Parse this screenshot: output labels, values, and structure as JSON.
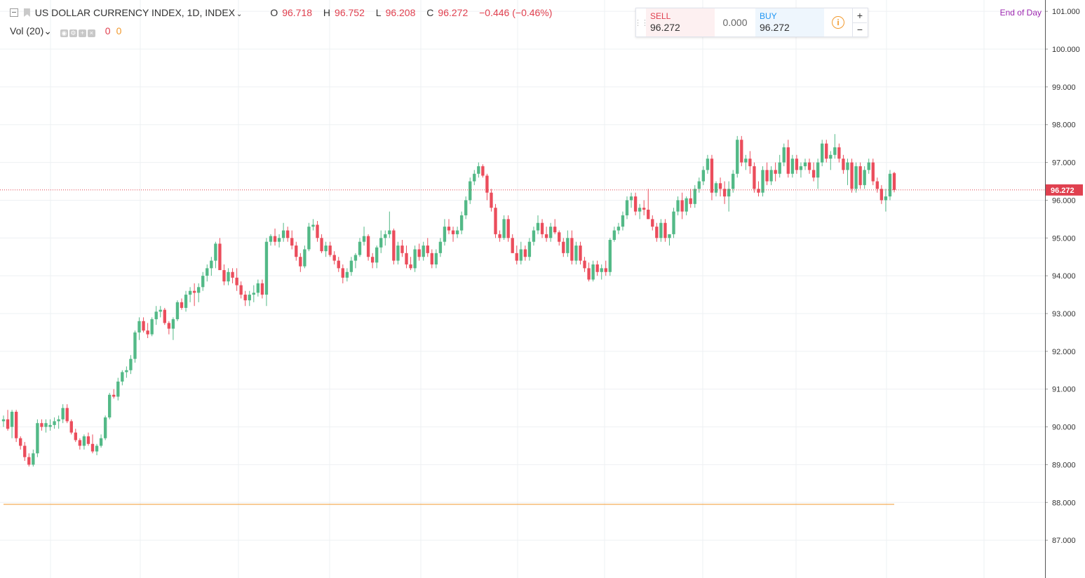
{
  "legend": {
    "symbol": "US DOLLAR CURRENCY INDEX, 1D, INDEX",
    "open_key": "O",
    "open": "96.718",
    "high_key": "H",
    "high": "96.752",
    "low_key": "L",
    "low": "96.208",
    "close_key": "C",
    "close": "96.272",
    "change": "−0.446 (−0.46%)"
  },
  "volume": {
    "label": "Vol (20)",
    "value1": "0",
    "value2": "0"
  },
  "trade": {
    "sell_label": "SELL",
    "sell_price": "96.272",
    "spread": "0.000",
    "buy_label": "BUY",
    "buy_price": "96.272",
    "info_glyph": "i",
    "zoom_in": "+",
    "zoom_out": "−"
  },
  "session_label": "End of Day",
  "price_tag": "96.272",
  "colors": {
    "up": "#53b987",
    "down": "#eb4d5c",
    "last_price_line": "#e0404f",
    "horizontal_line": "#f29a2e",
    "session_label": "#9c27b0"
  },
  "icons": [
    "collapse-icon",
    "flag-icon",
    "chevron-down-icon",
    "settings-icon",
    "add-icon",
    "close-icon",
    "info-icon",
    "drag-handle-icon"
  ],
  "chart_data": {
    "type": "candlestick",
    "y_axis": {
      "position": "right",
      "range": [
        86.0,
        101.3
      ],
      "ticks": [
        "101.000",
        "100.000",
        "99.000",
        "98.000",
        "97.000",
        "96.000",
        "95.000",
        "94.000",
        "93.000",
        "92.000",
        "91.000",
        "90.000",
        "89.000",
        "88.000",
        "87.000"
      ]
    },
    "grid": true,
    "last_price": 96.272,
    "horizontal_line": 87.95,
    "candles_ohlc": [
      [
        90.15,
        90.3,
        90.0,
        90.2
      ],
      [
        90.2,
        90.45,
        89.9,
        89.95
      ],
      [
        90.0,
        90.45,
        89.7,
        90.4
      ],
      [
        90.4,
        90.45,
        89.6,
        89.7
      ],
      [
        89.7,
        89.75,
        89.4,
        89.5
      ],
      [
        89.5,
        89.6,
        89.1,
        89.2
      ],
      [
        89.2,
        89.3,
        88.95,
        89.0
      ],
      [
        89.0,
        89.4,
        88.95,
        89.3
      ],
      [
        89.3,
        90.2,
        89.2,
        90.1
      ],
      [
        90.1,
        90.2,
        89.9,
        90.0
      ],
      [
        90.0,
        90.2,
        89.85,
        90.1
      ],
      [
        90.0,
        90.2,
        89.9,
        90.05
      ],
      [
        90.05,
        90.25,
        89.95,
        90.15
      ],
      [
        90.15,
        90.3,
        89.95,
        90.2
      ],
      [
        90.2,
        90.6,
        90.1,
        90.5
      ],
      [
        90.5,
        90.6,
        90.1,
        90.15
      ],
      [
        90.15,
        90.2,
        89.8,
        89.85
      ],
      [
        89.85,
        89.95,
        89.6,
        89.65
      ],
      [
        89.65,
        89.7,
        89.4,
        89.5
      ],
      [
        89.5,
        89.8,
        89.4,
        89.75
      ],
      [
        89.75,
        89.85,
        89.5,
        89.55
      ],
      [
        89.55,
        89.8,
        89.3,
        89.35
      ],
      [
        89.35,
        89.55,
        89.25,
        89.5
      ],
      [
        89.5,
        89.8,
        89.45,
        89.7
      ],
      [
        89.7,
        90.3,
        89.65,
        90.25
      ],
      [
        90.25,
        90.9,
        90.2,
        90.85
      ],
      [
        90.85,
        91.0,
        90.75,
        90.8
      ],
      [
        90.8,
        91.3,
        90.7,
        91.2
      ],
      [
        91.2,
        91.5,
        91.1,
        91.45
      ],
      [
        91.45,
        91.6,
        91.3,
        91.5
      ],
      [
        91.5,
        91.9,
        91.4,
        91.8
      ],
      [
        91.8,
        92.55,
        91.7,
        92.5
      ],
      [
        92.5,
        92.9,
        92.3,
        92.8
      ],
      [
        92.8,
        92.9,
        92.5,
        92.55
      ],
      [
        92.55,
        92.75,
        92.35,
        92.45
      ],
      [
        92.45,
        92.9,
        92.4,
        92.85
      ],
      [
        92.85,
        93.2,
        92.7,
        93.05
      ],
      [
        93.05,
        93.2,
        92.9,
        93.1
      ],
      [
        93.1,
        93.15,
        92.7,
        92.75
      ],
      [
        92.75,
        92.8,
        92.45,
        92.6
      ],
      [
        92.6,
        92.9,
        92.3,
        92.85
      ],
      [
        92.85,
        93.35,
        92.8,
        93.3
      ],
      [
        93.3,
        93.4,
        93.1,
        93.15
      ],
      [
        93.15,
        93.6,
        93.05,
        93.5
      ],
      [
        93.5,
        93.7,
        93.3,
        93.6
      ],
      [
        93.6,
        93.8,
        93.2,
        93.55
      ],
      [
        93.55,
        93.8,
        93.3,
        93.7
      ],
      [
        93.7,
        94.1,
        93.6,
        94.0
      ],
      [
        94.0,
        94.3,
        93.85,
        94.2
      ],
      [
        94.2,
        94.5,
        94.0,
        94.4
      ],
      [
        94.4,
        94.9,
        94.2,
        94.85
      ],
      [
        94.85,
        95.0,
        94.6,
        94.15
      ],
      [
        94.15,
        94.3,
        93.75,
        93.85
      ],
      [
        93.85,
        94.2,
        93.75,
        94.1
      ],
      [
        94.1,
        94.2,
        93.8,
        93.95
      ],
      [
        93.95,
        94.2,
        93.6,
        93.75
      ],
      [
        93.75,
        93.85,
        93.4,
        93.5
      ],
      [
        93.5,
        93.6,
        93.2,
        93.35
      ],
      [
        93.35,
        93.6,
        93.2,
        93.5
      ],
      [
        93.5,
        93.75,
        93.3,
        93.55
      ],
      [
        93.55,
        93.9,
        93.45,
        93.8
      ],
      [
        93.8,
        93.9,
        93.4,
        93.5
      ],
      [
        93.5,
        95.0,
        93.2,
        94.9
      ],
      [
        94.9,
        95.1,
        94.8,
        95.05
      ],
      [
        95.05,
        95.25,
        94.8,
        94.9
      ],
      [
        94.9,
        95.1,
        94.75,
        95.0
      ],
      [
        95.0,
        95.4,
        94.9,
        95.2
      ],
      [
        95.2,
        95.3,
        94.9,
        95.0
      ],
      [
        95.0,
        95.2,
        94.7,
        94.8
      ],
      [
        94.8,
        94.9,
        94.4,
        94.5
      ],
      [
        94.5,
        94.6,
        94.1,
        94.25
      ],
      [
        94.25,
        94.8,
        94.2,
        94.7
      ],
      [
        94.7,
        95.4,
        94.65,
        95.3
      ],
      [
        95.3,
        95.5,
        95.2,
        95.35
      ],
      [
        95.35,
        95.45,
        94.9,
        95.0
      ],
      [
        95.0,
        95.1,
        94.6,
        94.65
      ],
      [
        94.65,
        94.9,
        94.5,
        94.8
      ],
      [
        94.8,
        94.9,
        94.5,
        94.55
      ],
      [
        94.55,
        94.65,
        94.3,
        94.4
      ],
      [
        94.4,
        94.5,
        94.1,
        94.2
      ],
      [
        94.2,
        94.3,
        93.8,
        93.95
      ],
      [
        93.95,
        94.2,
        93.85,
        94.1
      ],
      [
        94.1,
        94.5,
        94.0,
        94.4
      ],
      [
        94.4,
        94.6,
        94.2,
        94.55
      ],
      [
        94.55,
        95.0,
        94.5,
        94.9
      ],
      [
        94.9,
        95.3,
        94.8,
        95.05
      ],
      [
        95.05,
        95.1,
        94.4,
        94.5
      ],
      [
        94.5,
        94.6,
        94.2,
        94.35
      ],
      [
        94.35,
        94.8,
        94.2,
        94.75
      ],
      [
        94.75,
        95.2,
        94.6,
        95.0
      ],
      [
        95.0,
        95.2,
        94.8,
        95.1
      ],
      [
        95.1,
        95.7,
        95.0,
        95.2
      ],
      [
        95.2,
        95.25,
        94.3,
        94.4
      ],
      [
        94.4,
        94.9,
        94.3,
        94.8
      ],
      [
        94.8,
        94.95,
        94.5,
        94.6
      ],
      [
        94.6,
        94.8,
        94.2,
        94.3
      ],
      [
        94.3,
        94.5,
        94.15,
        94.2
      ],
      [
        94.2,
        94.8,
        94.1,
        94.7
      ],
      [
        94.7,
        94.85,
        94.4,
        94.5
      ],
      [
        94.5,
        94.9,
        94.4,
        94.8
      ],
      [
        94.8,
        95.0,
        94.5,
        94.6
      ],
      [
        94.6,
        94.7,
        94.2,
        94.3
      ],
      [
        94.3,
        94.7,
        94.2,
        94.6
      ],
      [
        94.6,
        95.0,
        94.5,
        94.9
      ],
      [
        94.9,
        95.5,
        94.8,
        95.3
      ],
      [
        95.3,
        95.5,
        95.1,
        95.2
      ],
      [
        95.2,
        95.3,
        94.9,
        95.1
      ],
      [
        95.1,
        95.3,
        95.0,
        95.2
      ],
      [
        95.2,
        95.7,
        95.1,
        95.6
      ],
      [
        95.6,
        96.1,
        95.5,
        96.0
      ],
      [
        96.0,
        96.6,
        95.9,
        96.5
      ],
      [
        96.5,
        96.8,
        96.4,
        96.7
      ],
      [
        96.7,
        97.0,
        96.6,
        96.9
      ],
      [
        96.9,
        96.95,
        96.6,
        96.65
      ],
      [
        96.65,
        96.7,
        96.0,
        96.2
      ],
      [
        96.2,
        96.3,
        95.7,
        95.8
      ],
      [
        95.8,
        95.9,
        95.0,
        95.1
      ],
      [
        95.1,
        95.2,
        94.9,
        95.0
      ],
      [
        95.0,
        95.6,
        94.95,
        95.5
      ],
      [
        95.5,
        95.6,
        94.9,
        95.0
      ],
      [
        95.0,
        95.1,
        94.6,
        94.6
      ],
      [
        94.6,
        94.8,
        94.3,
        94.4
      ],
      [
        94.4,
        94.9,
        94.3,
        94.7
      ],
      [
        94.7,
        94.8,
        94.4,
        94.5
      ],
      [
        94.5,
        95.0,
        94.4,
        94.9
      ],
      [
        94.9,
        95.3,
        94.8,
        95.2
      ],
      [
        95.2,
        95.6,
        95.1,
        95.4
      ],
      [
        95.4,
        95.5,
        95.0,
        95.1
      ],
      [
        95.1,
        95.3,
        94.9,
        95.0
      ],
      [
        95.0,
        95.4,
        94.9,
        95.3
      ],
      [
        95.3,
        95.5,
        95.1,
        95.15
      ],
      [
        95.15,
        95.2,
        94.8,
        94.9
      ],
      [
        94.9,
        95.0,
        94.5,
        94.6
      ],
      [
        94.6,
        95.2,
        94.5,
        95.0
      ],
      [
        95.0,
        95.2,
        94.3,
        94.4
      ],
      [
        94.4,
        94.9,
        94.3,
        94.8
      ],
      [
        94.8,
        94.9,
        94.3,
        94.4
      ],
      [
        94.4,
        94.5,
        94.1,
        94.2
      ],
      [
        94.2,
        94.35,
        93.85,
        93.9
      ],
      [
        93.9,
        94.4,
        93.85,
        94.3
      ],
      [
        94.3,
        94.4,
        94.0,
        94.1
      ],
      [
        94.1,
        94.3,
        93.9,
        94.2
      ],
      [
        94.2,
        94.4,
        94.0,
        94.1
      ],
      [
        94.1,
        95.0,
        94.0,
        94.95
      ],
      [
        94.95,
        95.3,
        94.9,
        95.2
      ],
      [
        95.2,
        95.4,
        95.1,
        95.3
      ],
      [
        95.3,
        95.7,
        95.2,
        95.6
      ],
      [
        95.6,
        96.1,
        95.5,
        96.0
      ],
      [
        96.0,
        96.2,
        95.8,
        96.1
      ],
      [
        96.1,
        96.2,
        95.6,
        95.7
      ],
      [
        95.7,
        95.9,
        95.5,
        95.8
      ],
      [
        95.8,
        96.0,
        95.6,
        95.75
      ],
      [
        95.75,
        96.3,
        95.5,
        95.5
      ],
      [
        95.5,
        95.6,
        95.2,
        95.3
      ],
      [
        95.3,
        95.4,
        94.9,
        95.0
      ],
      [
        95.0,
        95.5,
        94.9,
        95.4
      ],
      [
        95.4,
        95.5,
        94.9,
        95.0
      ],
      [
        95.0,
        95.1,
        94.8,
        95.1
      ],
      [
        95.1,
        95.8,
        95.0,
        95.7
      ],
      [
        95.7,
        96.1,
        95.6,
        96.0
      ],
      [
        96.0,
        96.2,
        95.5,
        95.7
      ],
      [
        95.7,
        96.1,
        95.6,
        96.05
      ],
      [
        96.05,
        96.3,
        95.8,
        95.9
      ],
      [
        95.9,
        96.4,
        95.8,
        96.3
      ],
      [
        96.3,
        96.6,
        96.2,
        96.5
      ],
      [
        96.5,
        96.9,
        96.4,
        96.8
      ],
      [
        96.8,
        97.2,
        96.7,
        97.1
      ],
      [
        97.1,
        97.2,
        96.0,
        96.2
      ],
      [
        96.2,
        96.5,
        96.1,
        96.45
      ],
      [
        96.45,
        96.6,
        96.1,
        96.3
      ],
      [
        96.3,
        96.5,
        95.9,
        96.1
      ],
      [
        96.1,
        96.5,
        95.7,
        96.3
      ],
      [
        96.3,
        96.8,
        96.2,
        96.7
      ],
      [
        96.7,
        97.7,
        96.6,
        97.6
      ],
      [
        97.6,
        97.7,
        96.9,
        97.0
      ],
      [
        97.0,
        97.2,
        96.8,
        97.1
      ],
      [
        97.1,
        97.3,
        96.7,
        96.9
      ],
      [
        96.9,
        97.0,
        96.2,
        96.3
      ],
      [
        96.3,
        96.5,
        96.1,
        96.2
      ],
      [
        96.2,
        96.9,
        96.1,
        96.8
      ],
      [
        96.8,
        97.0,
        96.4,
        96.5
      ],
      [
        96.5,
        96.9,
        96.4,
        96.8
      ],
      [
        96.8,
        97.0,
        96.5,
        96.7
      ],
      [
        96.7,
        97.2,
        96.6,
        97.0
      ],
      [
        97.0,
        97.5,
        96.9,
        97.4
      ],
      [
        97.4,
        97.6,
        96.6,
        96.7
      ],
      [
        96.7,
        97.2,
        96.6,
        97.1
      ],
      [
        97.1,
        97.2,
        96.7,
        96.8
      ],
      [
        96.8,
        97.0,
        96.6,
        96.9
      ],
      [
        96.9,
        97.1,
        96.8,
        97.0
      ],
      [
        97.0,
        97.1,
        96.7,
        96.8
      ],
      [
        96.8,
        97.0,
        96.5,
        96.6
      ],
      [
        96.6,
        97.1,
        96.3,
        97.0
      ],
      [
        97.0,
        97.6,
        96.9,
        97.5
      ],
      [
        97.5,
        97.6,
        97.0,
        97.1
      ],
      [
        97.1,
        97.3,
        96.8,
        97.2
      ],
      [
        97.2,
        97.75,
        97.1,
        97.4
      ],
      [
        97.4,
        97.5,
        97.0,
        97.1
      ],
      [
        97.1,
        97.2,
        96.7,
        96.8
      ],
      [
        96.8,
        97.1,
        96.4,
        97.0
      ],
      [
        97.0,
        97.1,
        96.2,
        96.3
      ],
      [
        96.3,
        97.0,
        96.2,
        96.9
      ],
      [
        96.9,
        97.0,
        96.3,
        96.4
      ],
      [
        96.4,
        96.9,
        96.3,
        96.8
      ],
      [
        96.8,
        97.1,
        96.7,
        97.0
      ],
      [
        97.0,
        97.1,
        96.4,
        96.5
      ],
      [
        96.5,
        96.6,
        96.2,
        96.3
      ],
      [
        96.3,
        96.4,
        95.9,
        96.0
      ],
      [
        96.0,
        96.3,
        95.7,
        96.1
      ],
      [
        96.1,
        96.8,
        96.0,
        96.7
      ],
      [
        96.718,
        96.752,
        96.208,
        96.272
      ]
    ]
  }
}
